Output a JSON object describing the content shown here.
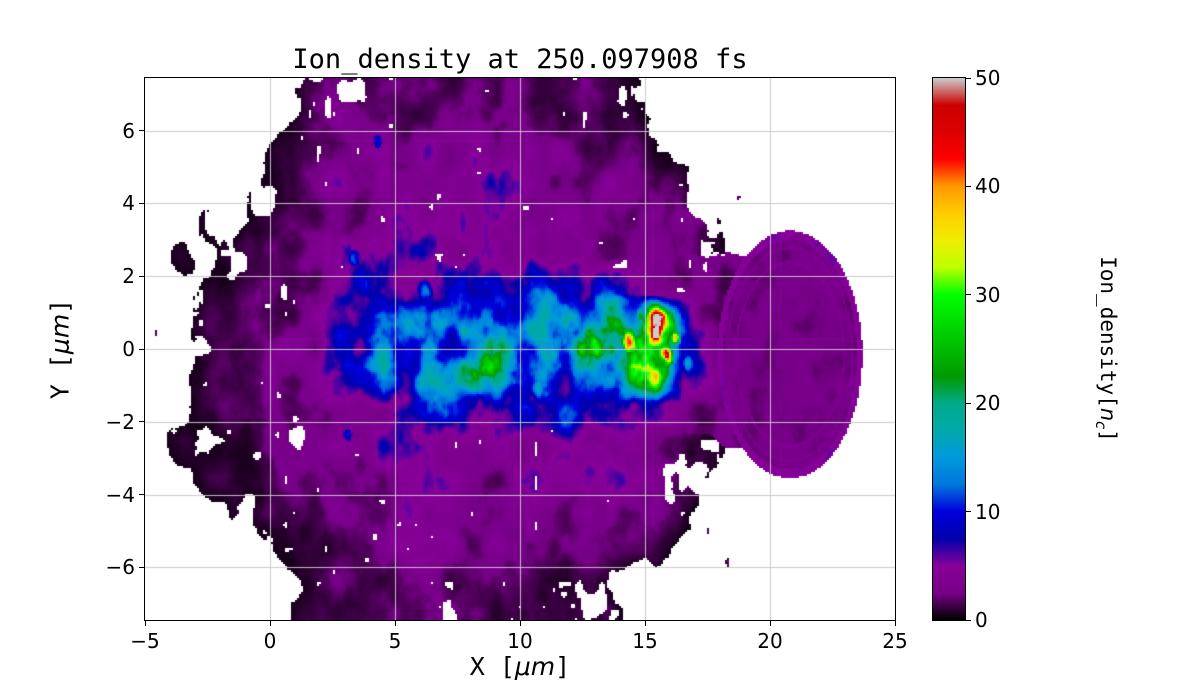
{
  "chart_data": {
    "type": "heatmap",
    "title": "Ion_density at 250.097908 fs",
    "xlabel": "X [μm]",
    "ylabel": "Y [μm]",
    "xlabel_parts": {
      "pre": "X [",
      "math": "μm",
      "post": "]"
    },
    "ylabel_parts": {
      "pre": "Y [",
      "math": "μm",
      "post": "]"
    },
    "x_range": [
      -5,
      25
    ],
    "y_range": [
      -7.45,
      7.45
    ],
    "x_ticks": [
      -5,
      0,
      5,
      10,
      15,
      20,
      25
    ],
    "y_ticks": [
      -6,
      -4,
      -2,
      0,
      2,
      4,
      6
    ],
    "x_tick_labels": [
      "−5",
      "0",
      "5",
      "10",
      "15",
      "20",
      "25"
    ],
    "y_tick_labels": [
      "−6",
      "−4",
      "−2",
      "0",
      "2",
      "4",
      "6"
    ],
    "grid": true,
    "grid_color": "#c8c8c8",
    "colorbar": {
      "label": "Ion_density[nc]",
      "label_parts": {
        "pre": "Ion_density[",
        "math": "n",
        "sub": "c",
        "post": "]"
      },
      "min": 0,
      "max": 50,
      "ticks": [
        0,
        10,
        20,
        30,
        40,
        50
      ],
      "tick_labels": [
        "0",
        "10",
        "20",
        "30",
        "40",
        "50"
      ]
    },
    "colormap": {
      "name": "nipy_spectral",
      "stops": [
        [
          0.0,
          "#000000"
        ],
        [
          0.05,
          "#770088"
        ],
        [
          0.1,
          "#880099"
        ],
        [
          0.15,
          "#0000AA"
        ],
        [
          0.2,
          "#0000DD"
        ],
        [
          0.25,
          "#0077DD"
        ],
        [
          0.3,
          "#0099DD"
        ],
        [
          0.35,
          "#00AAAA"
        ],
        [
          0.4,
          "#00AA88"
        ],
        [
          0.45,
          "#009900"
        ],
        [
          0.5,
          "#00BB00"
        ],
        [
          0.55,
          "#00DD00"
        ],
        [
          0.6,
          "#00FF00"
        ],
        [
          0.65,
          "#BBFF00"
        ],
        [
          0.7,
          "#EEEE00"
        ],
        [
          0.75,
          "#FFCC00"
        ],
        [
          0.8,
          "#FF9900"
        ],
        [
          0.85,
          "#FF0000"
        ],
        [
          0.9,
          "#DD0000"
        ],
        [
          0.95,
          "#CC0000"
        ],
        [
          1.0,
          "#CCCCCC"
        ]
      ]
    },
    "density_grid": {
      "units": "nc",
      "x_start": -4.5,
      "x_step": 1,
      "y_start": 6.5,
      "y_step": -1,
      "values": [
        [
          0,
          0,
          0,
          0,
          0,
          0,
          1,
          2,
          2,
          2,
          2,
          3,
          2,
          2,
          3,
          2,
          2,
          2,
          1,
          1,
          0,
          0,
          0,
          0,
          0,
          0,
          0,
          0,
          0,
          0
        ],
        [
          0,
          0,
          0,
          0,
          0,
          1,
          2,
          2,
          3,
          3,
          3,
          3,
          3,
          3,
          3,
          3,
          3,
          2,
          2,
          2,
          1,
          0,
          0,
          0,
          0,
          0,
          0,
          0,
          0,
          0
        ],
        [
          0,
          0,
          0,
          0,
          1,
          1,
          2,
          3,
          3,
          3,
          3,
          3,
          3,
          4,
          4,
          3,
          3,
          3,
          3,
          2,
          2,
          1,
          0,
          0,
          0,
          0,
          0,
          0,
          0,
          0
        ],
        [
          0,
          0,
          1,
          0,
          1,
          2,
          2,
          3,
          3,
          4,
          4,
          4,
          4,
          4,
          4,
          4,
          4,
          3,
          3,
          3,
          2,
          2,
          1,
          0,
          0,
          0,
          0,
          0,
          0,
          0
        ],
        [
          0,
          1,
          0,
          1,
          1,
          2,
          3,
          3,
          5,
          6,
          4,
          4,
          4,
          5,
          5,
          5,
          4,
          4,
          3,
          3,
          3,
          2,
          1,
          0,
          0,
          0,
          0,
          0,
          0,
          0
        ],
        [
          0,
          0,
          1,
          1,
          2,
          2,
          3,
          4,
          5,
          6,
          7,
          8,
          8,
          8,
          9,
          10,
          8,
          7,
          8,
          5,
          4,
          3,
          2,
          1,
          0,
          0,
          0,
          0,
          0,
          0
        ],
        [
          0,
          0,
          1,
          1,
          2,
          3,
          3,
          5,
          8,
          10,
          12,
          12,
          13,
          15,
          18,
          15,
          14,
          16,
          22,
          30,
          40,
          10,
          4,
          2,
          0,
          0,
          0,
          0,
          0,
          0
        ],
        [
          0,
          0,
          1,
          1,
          2,
          3,
          3,
          5,
          8,
          10,
          12,
          13,
          15,
          18,
          15,
          13,
          14,
          15,
          20,
          26,
          30,
          8,
          4,
          2,
          0,
          0,
          0,
          0,
          0,
          0
        ],
        [
          0,
          0,
          1,
          1,
          2,
          2,
          3,
          4,
          5,
          6,
          7,
          9,
          10,
          9,
          8,
          8,
          8,
          9,
          8,
          6,
          5,
          3,
          2,
          1,
          0,
          0,
          0,
          0,
          0,
          0
        ],
        [
          0,
          1,
          0,
          1,
          1,
          2,
          3,
          3,
          5,
          5,
          4,
          4,
          5,
          5,
          5,
          4,
          4,
          4,
          3,
          3,
          3,
          2,
          1,
          0,
          0,
          0,
          0,
          0,
          0,
          0
        ],
        [
          0,
          0,
          1,
          1,
          1,
          2,
          2,
          3,
          3,
          4,
          4,
          4,
          4,
          4,
          4,
          4,
          3,
          3,
          3,
          3,
          2,
          2,
          1,
          0,
          0,
          0,
          0,
          0,
          0,
          0
        ],
        [
          0,
          0,
          0,
          1,
          1,
          1,
          2,
          3,
          3,
          3,
          3,
          4,
          3,
          3,
          4,
          3,
          3,
          3,
          2,
          2,
          2,
          1,
          0,
          0,
          0,
          0,
          0,
          0,
          0,
          0
        ],
        [
          0,
          0,
          0,
          0,
          0,
          1,
          2,
          2,
          3,
          3,
          3,
          3,
          3,
          3,
          3,
          3,
          2,
          2,
          2,
          1,
          1,
          0,
          0,
          0,
          0,
          0,
          0,
          0,
          0,
          0
        ],
        [
          0,
          0,
          0,
          0,
          0,
          0,
          1,
          2,
          2,
          2,
          3,
          3,
          2,
          2,
          2,
          2,
          2,
          1,
          1,
          0,
          0,
          0,
          0,
          0,
          0,
          0,
          0,
          0,
          0,
          0
        ]
      ]
    },
    "features": {
      "cap": {
        "cx": 20.8,
        "cy": -0.15,
        "rx": 2.9,
        "ry": 3.4,
        "value": 2.4
      },
      "neck": {
        "x0": 16.6,
        "x1": 19.5,
        "half_width": 2.4,
        "value": 2.4
      },
      "hotspots": [
        {
          "x": 15.5,
          "y": 0.45,
          "r": 0.5,
          "v": 50
        },
        {
          "x": 15.8,
          "y": -0.2,
          "r": 0.45,
          "v": 46
        },
        {
          "x": 16.2,
          "y": 0.3,
          "r": 0.3,
          "v": 40
        },
        {
          "x": 14.4,
          "y": 0.2,
          "r": 0.55,
          "v": 34
        },
        {
          "x": 15.1,
          "y": -0.6,
          "r": 0.45,
          "v": 30
        },
        {
          "x": 13.6,
          "y": 0.0,
          "r": 0.6,
          "v": 24
        },
        {
          "x": 14.9,
          "y": 0.9,
          "r": 0.4,
          "v": 22
        },
        {
          "x": 16.7,
          "y": -0.4,
          "r": 0.4,
          "v": 16
        },
        {
          "x": 9.3,
          "y": -0.2,
          "r": 0.8,
          "v": 17
        },
        {
          "x": 10.9,
          "y": -1.1,
          "r": 0.7,
          "v": 15
        },
        {
          "x": 11.8,
          "y": 0.4,
          "r": 0.6,
          "v": 14
        },
        {
          "x": 8.4,
          "y": 0.3,
          "r": 0.6,
          "v": 14
        },
        {
          "x": 6.2,
          "y": 1.6,
          "r": 0.45,
          "v": 13
        },
        {
          "x": 4.3,
          "y": 5.7,
          "r": 0.3,
          "v": 12
        },
        {
          "x": 3.4,
          "y": 2.5,
          "r": 0.35,
          "v": 13
        },
        {
          "x": 3.1,
          "y": -2.4,
          "r": 0.3,
          "v": 12
        },
        {
          "x": 4.1,
          "y": -0.3,
          "r": 0.4,
          "v": 12
        }
      ]
    },
    "texture": {
      "seed": 7,
      "mottle_scale": 1.1,
      "hole_scale": 0.85
    }
  }
}
